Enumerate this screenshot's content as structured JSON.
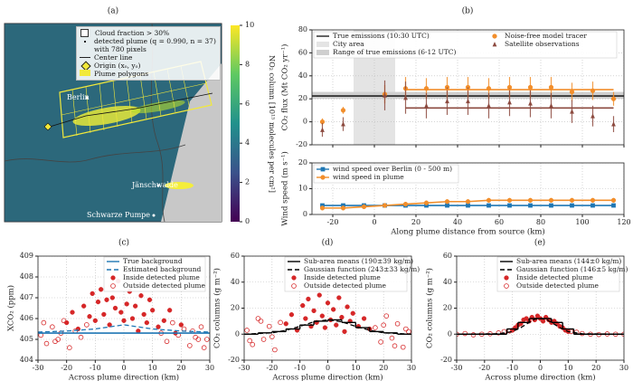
{
  "map": {
    "panel": "(a)",
    "legend": [
      "Cloud fraction > 30%",
      "detected plume (q = 0.990, n = 37) with 780 pixels",
      "Center line",
      "Origin (xₒ, yₒ)",
      "Plume polygons"
    ],
    "places": [
      "Berlin",
      "Jänschwalde",
      "Schwarze Pumpe"
    ],
    "colorbar": {
      "label": "NO₂ column [10¹⁵ molecules per cm²]",
      "lim": [
        0,
        10
      ],
      "ticks": [
        0,
        2,
        4,
        6,
        8,
        10
      ]
    }
  },
  "chart_data": [
    {
      "type": "scatter",
      "panel": "(b)",
      "ylabel": "CO₂ flux (Mt CO₂ yr⁻¹)",
      "xlim": [
        -30,
        120
      ],
      "ylim": [
        -20,
        80
      ],
      "xticks": [
        -20,
        0,
        20,
        40,
        60,
        80,
        100,
        120
      ],
      "yticks": [
        -20,
        0,
        20,
        40,
        60,
        80
      ],
      "xticklabels": false,
      "grid": true,
      "spans": [
        {
          "name": "City area",
          "color": "#e4e4e4",
          "axis": "x",
          "range": [
            -10,
            10
          ]
        },
        {
          "name": "Range of true emissions (6-12 UTC)",
          "color": "#cfcfcf",
          "axis": "y",
          "range": [
            20,
            26
          ]
        }
      ],
      "series": [
        {
          "name": "True emissions (10:30 UTC)",
          "color": "#222222",
          "x": [
            -30,
            120
          ],
          "values": [
            22.5,
            22.5
          ],
          "marker": "none",
          "line": "solid"
        },
        {
          "name": "Noise-free model tracer",
          "color": "#f28e2b",
          "marker": "circle",
          "line": "none",
          "x": [
            -25,
            -15,
            5,
            15,
            25,
            35,
            45,
            55,
            65,
            75,
            85,
            95,
            105,
            115
          ],
          "values": [
            0,
            10,
            24,
            29,
            29,
            30,
            30,
            29,
            30,
            30,
            30,
            26,
            27,
            20
          ],
          "errors": [
            3,
            3,
            8,
            10,
            9,
            9,
            9,
            9,
            9,
            9,
            9,
            8,
            8,
            6
          ]
        },
        {
          "name": "Satellite observations",
          "color": "#8c4a3f",
          "marker": "triangle",
          "line": "none",
          "x": [
            -25,
            -15,
            5,
            15,
            25,
            35,
            45,
            55,
            65,
            75,
            85,
            95,
            105,
            115
          ],
          "values": [
            -7,
            -2,
            23,
            21,
            14,
            18,
            18,
            14,
            17,
            16,
            14,
            9,
            5,
            -2
          ],
          "errors": [
            6,
            6,
            13,
            14,
            11,
            12,
            12,
            11,
            12,
            12,
            11,
            10,
            9,
            7
          ]
        },
        {
          "color": "#f28e2b",
          "x": [
            15,
            115
          ],
          "values": [
            28,
            28
          ],
          "marker": "none",
          "line": "solid"
        },
        {
          "color": "#8c4a3f",
          "x": [
            15,
            115
          ],
          "values": [
            12,
            12
          ],
          "marker": "none",
          "line": "solid"
        }
      ]
    },
    {
      "type": "line",
      "ylabel": "Wind speed (m s⁻¹)",
      "xlabel": "Along plume distance from source (km)",
      "xlim": [
        -30,
        120
      ],
      "ylim": [
        0,
        20
      ],
      "xticks": [
        -20,
        0,
        20,
        40,
        60,
        80,
        100,
        120
      ],
      "yticks": [
        0,
        10,
        20
      ],
      "grid": true,
      "series": [
        {
          "name": "wind speed over Berlin (0 - 500 m)",
          "color": "#1f77b4",
          "marker": "square",
          "line": "solid",
          "x": [
            -25,
            -15,
            -5,
            5,
            15,
            25,
            35,
            45,
            55,
            65,
            75,
            85,
            95,
            105,
            115
          ],
          "values": [
            3.5,
            3.5,
            3.5,
            3.5,
            3.5,
            3.5,
            3.5,
            3.5,
            3.5,
            3.5,
            3.5,
            3.5,
            3.5,
            3.5,
            3.5
          ]
        },
        {
          "name": "wind speed in plume",
          "color": "#f28e2b",
          "marker": "circle",
          "line": "solid",
          "x": [
            -25,
            -15,
            -5,
            5,
            15,
            25,
            35,
            45,
            55,
            65,
            75,
            85,
            95,
            105,
            115
          ],
          "values": [
            2.5,
            2.5,
            3,
            3.5,
            4,
            4.5,
            5,
            5,
            5.5,
            5.5,
            5.5,
            5.5,
            5.5,
            5.5,
            5.5
          ]
        }
      ]
    },
    {
      "type": "scatter",
      "panel": "(c)",
      "ylabel": "XCO₂ (ppm)",
      "xlabel": "Across plume direction (km)",
      "xlim": [
        -30,
        30
      ],
      "ylim": [
        404,
        409
      ],
      "xticks": [
        -30,
        -20,
        -10,
        0,
        10,
        20,
        30
      ],
      "yticks": [
        404,
        405,
        406,
        407,
        408,
        409
      ],
      "grid": true,
      "series": [
        {
          "name": "Inside detected plume",
          "color": "#d62728",
          "marker": "circle",
          "line": "none",
          "x": [
            -20,
            -18,
            -16,
            -14,
            -12,
            -11,
            -10,
            -9,
            -8,
            -7,
            -6,
            -5,
            -4,
            -3,
            -2,
            -1,
            0,
            1,
            2,
            3,
            4,
            5,
            6,
            7,
            8,
            9,
            10,
            12,
            14,
            16,
            18,
            20
          ],
          "values": [
            405.8,
            406.3,
            405.5,
            406.6,
            406.1,
            407.2,
            405.9,
            406.8,
            407.4,
            406.2,
            406.9,
            405.7,
            407.0,
            406.5,
            407.8,
            406.3,
            405.9,
            406.7,
            407.3,
            406.0,
            406.6,
            405.4,
            407.1,
            406.2,
            405.8,
            406.9,
            406.4,
            405.6,
            405.9,
            406.4,
            405.3,
            405.7
          ]
        },
        {
          "name": "Outside detected plume",
          "color": "#d62728",
          "marker": "open-circle",
          "line": "none",
          "x": [
            -29,
            -27,
            -25,
            -23,
            -21,
            -19,
            -17,
            -15,
            -13,
            13,
            15,
            17,
            19,
            21,
            23,
            25,
            27,
            29,
            -28,
            -24,
            -22,
            24,
            26,
            28
          ],
          "values": [
            405.2,
            404.8,
            405.6,
            405.0,
            405.9,
            404.6,
            405.4,
            405.1,
            405.7,
            405.3,
            404.9,
            405.8,
            405.2,
            405.5,
            404.7,
            405.1,
            405.6,
            405.0,
            405.8,
            404.9,
            405.3,
            405.4,
            405.0,
            404.6
          ]
        },
        {
          "name": "True background",
          "color": "#1f77b4",
          "marker": "none",
          "line": "solid",
          "x": [
            -30,
            30
          ],
          "values": [
            405.3,
            405.3
          ]
        },
        {
          "name": "Estimated background",
          "color": "#1f77b4",
          "marker": "none",
          "line": "dashed",
          "x": [
            -30,
            -20,
            -10,
            -5,
            0,
            5,
            10,
            20,
            30
          ],
          "values": [
            405.35,
            405.4,
            405.5,
            405.6,
            405.7,
            405.6,
            405.5,
            405.4,
            405.35
          ]
        }
      ]
    },
    {
      "type": "scatter",
      "panel": "(d)",
      "ylabel": "CO₂ columns (g m⁻²)",
      "xlabel": "Across plume direction (km)",
      "xlim": [
        -30,
        30
      ],
      "ylim": [
        -20,
        60
      ],
      "xticks": [
        -30,
        -20,
        -10,
        0,
        10,
        20,
        30
      ],
      "yticks": [
        -20,
        0,
        20,
        40,
        60
      ],
      "grid": true,
      "series": [
        {
          "name": "Inside detected plume",
          "color": "#d62728",
          "marker": "circle",
          "line": "none",
          "x": [
            -15,
            -13,
            -11,
            -9,
            -8,
            -7,
            -6,
            -5,
            -4,
            -3,
            -2,
            -1,
            0,
            1,
            2,
            3,
            4,
            5,
            6,
            7,
            8,
            9,
            11,
            13,
            15
          ],
          "values": [
            8,
            15,
            3,
            22,
            12,
            27,
            6,
            18,
            9,
            30,
            14,
            5,
            24,
            11,
            19,
            7,
            28,
            13,
            2,
            21,
            10,
            16,
            6,
            12,
            4
          ]
        },
        {
          "name": "Outside detected plume",
          "color": "#d62728",
          "marker": "open-circle",
          "line": "none",
          "x": [
            -29,
            -27,
            -25,
            -23,
            -21,
            -19,
            -17,
            17,
            19,
            21,
            23,
            25,
            27,
            29,
            -28,
            -24,
            -20,
            20,
            24,
            28
          ],
          "values": [
            3,
            -8,
            12,
            -4,
            6,
            -12,
            9,
            5,
            -6,
            14,
            -3,
            8,
            -10,
            2,
            -5,
            10,
            -2,
            7,
            -9,
            4
          ]
        },
        {
          "name": "Sub-area means (190±39 kg/m)",
          "color": "#000000",
          "marker": "none",
          "line": "step",
          "bins": [
            -30,
            -25,
            -20,
            -15,
            -10,
            -5,
            0,
            5,
            10,
            15,
            20,
            25,
            30
          ],
          "values": [
            0,
            1,
            2,
            4,
            7,
            10,
            11,
            9,
            5,
            2,
            1,
            0
          ]
        },
        {
          "name": "Gaussian function (243±33 kg/m)",
          "color": "#000000",
          "marker": "none",
          "line": "dashed",
          "x": [
            -30,
            -20,
            -15,
            -10,
            -5,
            0,
            5,
            10,
            15,
            20,
            30
          ],
          "values": [
            0,
            1,
            3,
            6,
            9.5,
            11,
            9.5,
            6,
            3,
            1,
            0
          ]
        }
      ]
    },
    {
      "type": "scatter",
      "panel": "(e)",
      "ylabel": "CO₂ columns (g m⁻²)",
      "xlabel": "Across plume direction (km)",
      "xlim": [
        -30,
        30
      ],
      "ylim": [
        -20,
        60
      ],
      "xticks": [
        -30,
        -20,
        -10,
        0,
        10,
        20,
        30
      ],
      "yticks": [
        -20,
        0,
        20,
        40,
        60
      ],
      "grid": true,
      "series": [
        {
          "name": "Inside detected plume",
          "color": "#d62728",
          "marker": "circle",
          "line": "none",
          "x": [
            -10,
            -9,
            -8,
            -7,
            -6,
            -5,
            -4,
            -3,
            -2,
            -1,
            0,
            1,
            2,
            3,
            4,
            5,
            6,
            7,
            8,
            9,
            10
          ],
          "values": [
            3,
            5,
            7,
            8,
            11,
            12,
            10,
            13,
            11,
            14,
            12,
            10,
            13,
            11,
            9,
            10,
            8,
            6,
            5,
            3,
            2
          ]
        },
        {
          "name": "Outside detected plume",
          "color": "#d62728",
          "marker": "open-circle",
          "line": "none",
          "x": [
            -30,
            -27,
            -24,
            -21,
            -18,
            -15,
            -13,
            -11,
            11,
            13,
            15,
            18,
            21,
            24,
            27,
            30
          ],
          "values": [
            0,
            0.5,
            -0.5,
            0,
            0.3,
            1,
            2,
            2.5,
            2,
            1.5,
            0.5,
            0,
            -0.3,
            0.2,
            0,
            0
          ]
        },
        {
          "name": "Sub-area means (144±0 kg/m)",
          "color": "#000000",
          "marker": "none",
          "line": "step",
          "bins": [
            -30,
            -12,
            -8,
            -4,
            0,
            4,
            8,
            12,
            30
          ],
          "values": [
            0,
            4,
            9,
            12,
            12,
            9,
            4,
            0
          ]
        },
        {
          "name": "Gaussian function (146±5 kg/m)",
          "color": "#000000",
          "marker": "none",
          "line": "dashed",
          "x": [
            -30,
            -15,
            -10,
            -7,
            -4,
            -2,
            0,
            2,
            4,
            7,
            10,
            15,
            30
          ],
          "values": [
            0,
            0.3,
            2,
            5,
            9,
            11.5,
            12,
            11.5,
            9,
            5,
            2,
            0.3,
            0
          ]
        }
      ]
    }
  ]
}
